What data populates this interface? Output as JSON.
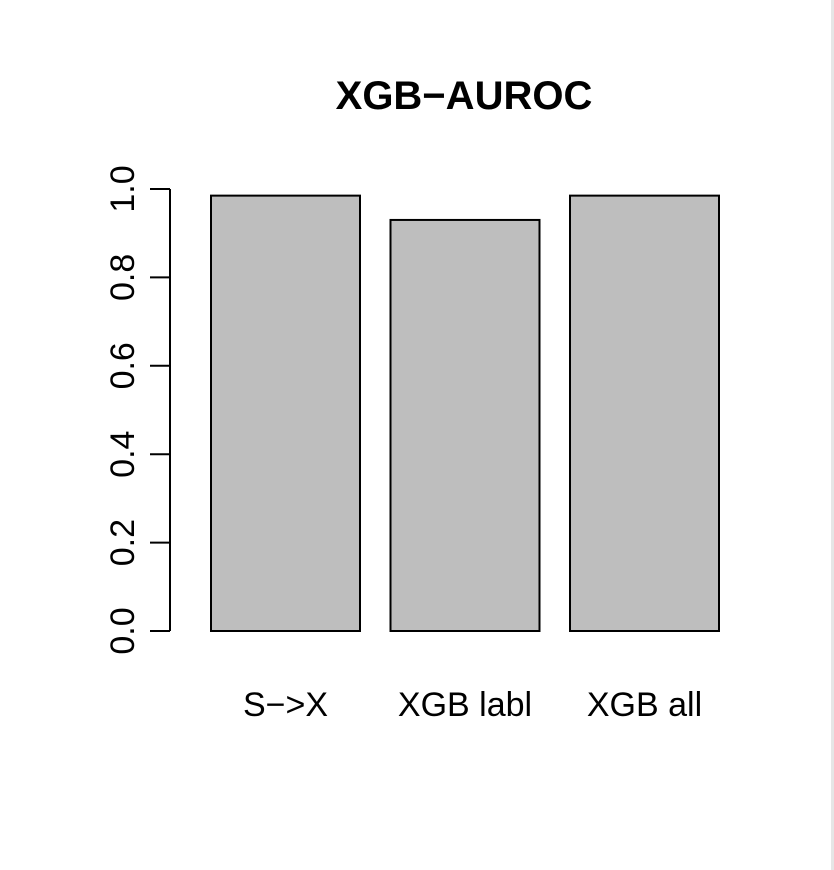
{
  "chart_data": {
    "type": "bar",
    "title": "XGB−AUROC",
    "categories": [
      "S−>X",
      "XGB labl",
      "XGB all"
    ],
    "values": [
      0.985,
      0.93,
      0.985
    ],
    "ylim": [
      0,
      1
    ],
    "yticks": [
      "0.0",
      "0.2",
      "0.4",
      "0.6",
      "0.8",
      "1.0"
    ],
    "xlabel": "",
    "ylabel": "",
    "grid": false,
    "bar_color": "#bebebe",
    "edge_color": "#000000"
  }
}
